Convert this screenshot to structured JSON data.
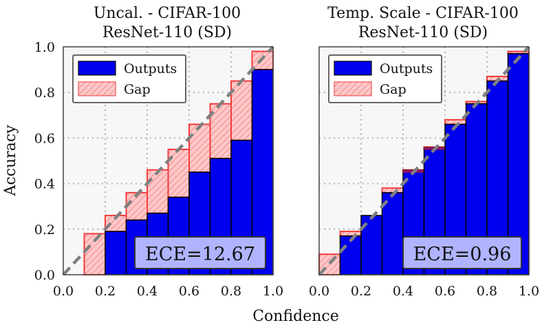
{
  "figure": {
    "xlabel": "Confidence",
    "ylabel": "Accuracy"
  },
  "chart_data": [
    {
      "type": "bar",
      "title_line1": "Uncal. - CIFAR-100",
      "title_line2": "ResNet-110 (SD)",
      "xlim": [
        0.0,
        1.0
      ],
      "ylim": [
        0.0,
        1.0
      ],
      "x_ticks": [
        "0.0",
        "0.2",
        "0.4",
        "0.6",
        "0.8",
        "1.0"
      ],
      "y_ticks": [
        "0.0",
        "0.2",
        "0.4",
        "0.6",
        "0.8",
        "1.0"
      ],
      "grid": true,
      "legend_position": "top-left",
      "legend": [
        {
          "label": "Outputs",
          "color": "#0000ee"
        },
        {
          "label": "Gap",
          "color": "#ffc8c8"
        }
      ],
      "bin_edges": [
        0.0,
        0.1,
        0.2,
        0.3,
        0.4,
        0.5,
        0.6,
        0.7,
        0.8,
        0.9,
        1.0
      ],
      "series": [
        {
          "name": "Outputs",
          "values": [
            0.0,
            0.0,
            0.19,
            0.24,
            0.27,
            0.34,
            0.45,
            0.51,
            0.59,
            0.9
          ]
        },
        {
          "name": "Gap",
          "values": [
            0.0,
            0.18,
            0.26,
            0.36,
            0.46,
            0.55,
            0.66,
            0.75,
            0.85,
            0.98
          ]
        }
      ],
      "annotation": "ECE=12.67"
    },
    {
      "type": "bar",
      "title_line1": "Temp. Scale - CIFAR-100",
      "title_line2": "ResNet-110 (SD)",
      "xlim": [
        0.0,
        1.0
      ],
      "ylim": [
        0.0,
        1.0
      ],
      "x_ticks": [
        "0.0",
        "0.2",
        "0.4",
        "0.6",
        "0.8",
        "1.0"
      ],
      "y_ticks": [],
      "grid": true,
      "legend_position": "top-left",
      "legend": [
        {
          "label": "Outputs",
          "color": "#0000ee"
        },
        {
          "label": "Gap",
          "color": "#ffc8c8"
        }
      ],
      "bin_edges": [
        0.0,
        0.1,
        0.2,
        0.3,
        0.4,
        0.5,
        0.6,
        0.7,
        0.8,
        0.9,
        1.0
      ],
      "series": [
        {
          "name": "Outputs",
          "values": [
            0.0,
            0.17,
            0.26,
            0.36,
            0.46,
            0.56,
            0.66,
            0.75,
            0.85,
            0.97
          ]
        },
        {
          "name": "Gap",
          "values": [
            0.09,
            0.19,
            0.26,
            0.38,
            0.45,
            0.55,
            0.68,
            0.76,
            0.87,
            0.98
          ]
        }
      ],
      "annotation": "ECE=0.96"
    }
  ]
}
